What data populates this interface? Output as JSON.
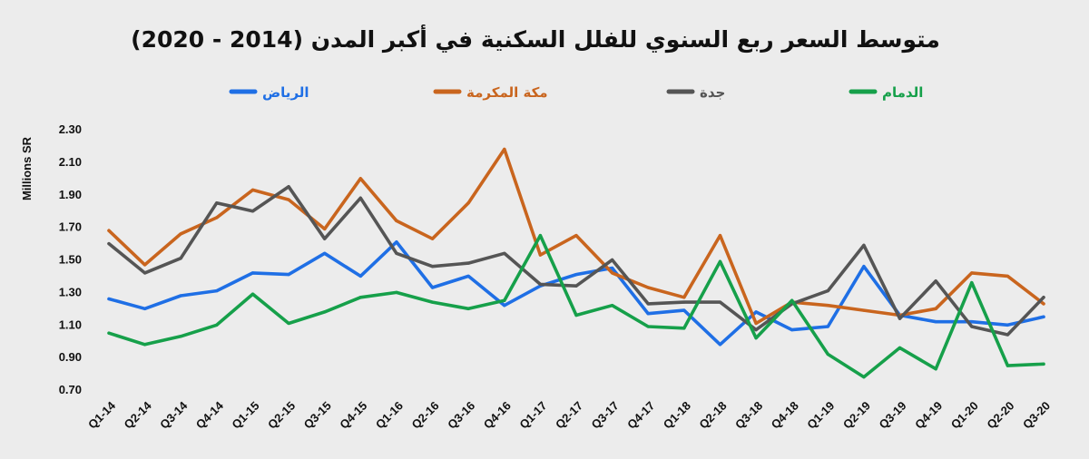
{
  "chart_data": {
    "type": "line",
    "title": "متوسط السعر ربع السنوي للفلل السكنية في أكبر المدن (2014 - 2020)",
    "ylabel": "Millions SR",
    "xlabel": "",
    "ylim": [
      0.7,
      2.3
    ],
    "yticks": [
      "2.30",
      "2.10",
      "1.90",
      "1.70",
      "1.50",
      "1.30",
      "1.10",
      "0.90",
      "0.70"
    ],
    "grid": false,
    "legend_position": "top",
    "categories": [
      "Q1-14",
      "Q2-14",
      "Q3-14",
      "Q4-14",
      "Q1-15",
      "Q2-15",
      "Q3-15",
      "Q4-15",
      "Q1-16",
      "Q2-16",
      "Q3-16",
      "Q4-16",
      "Q1-17",
      "Q2-17",
      "Q3-17",
      "Q4-17",
      "Q1-18",
      "Q2-18",
      "Q3-18",
      "Q4-18",
      "Q1-19",
      "Q2-19",
      "Q3-19",
      "Q4-19",
      "Q1-20",
      "Q2-20",
      "Q3-20"
    ],
    "series": [
      {
        "name": "الرياض",
        "color": "#1f6fe5",
        "values": [
          1.26,
          1.2,
          1.28,
          1.31,
          1.42,
          1.41,
          1.54,
          1.4,
          1.61,
          1.33,
          1.4,
          1.22,
          1.34,
          1.41,
          1.45,
          1.17,
          1.19,
          0.98,
          1.18,
          1.07,
          1.09,
          1.46,
          1.16,
          1.12,
          1.12,
          1.1,
          1.15
        ]
      },
      {
        "name": "مكة المكرمة",
        "color": "#c9651e",
        "values": [
          1.68,
          1.47,
          1.66,
          1.76,
          1.93,
          1.87,
          1.69,
          2.0,
          1.74,
          1.63,
          1.85,
          2.18,
          1.53,
          1.65,
          1.42,
          1.33,
          1.27,
          1.65,
          1.11,
          1.24,
          1.22,
          1.19,
          1.16,
          1.2,
          1.42,
          1.4,
          1.23
        ]
      },
      {
        "name": "جدة",
        "color": "#555555",
        "values": [
          1.6,
          1.42,
          1.51,
          1.85,
          1.8,
          1.95,
          1.63,
          1.88,
          1.54,
          1.46,
          1.48,
          1.54,
          1.35,
          1.34,
          1.5,
          1.23,
          1.24,
          1.24,
          1.07,
          1.23,
          1.31,
          1.59,
          1.14,
          1.37,
          1.09,
          1.04,
          1.27
        ]
      },
      {
        "name": "الدمام",
        "color": "#16a04a",
        "values": [
          1.05,
          0.98,
          1.03,
          1.1,
          1.29,
          1.11,
          1.18,
          1.27,
          1.3,
          1.24,
          1.2,
          1.25,
          1.65,
          1.16,
          1.22,
          1.09,
          1.08,
          1.49,
          1.02,
          1.25,
          0.92,
          0.78,
          0.96,
          0.83,
          1.36,
          0.85,
          0.86
        ]
      }
    ]
  }
}
